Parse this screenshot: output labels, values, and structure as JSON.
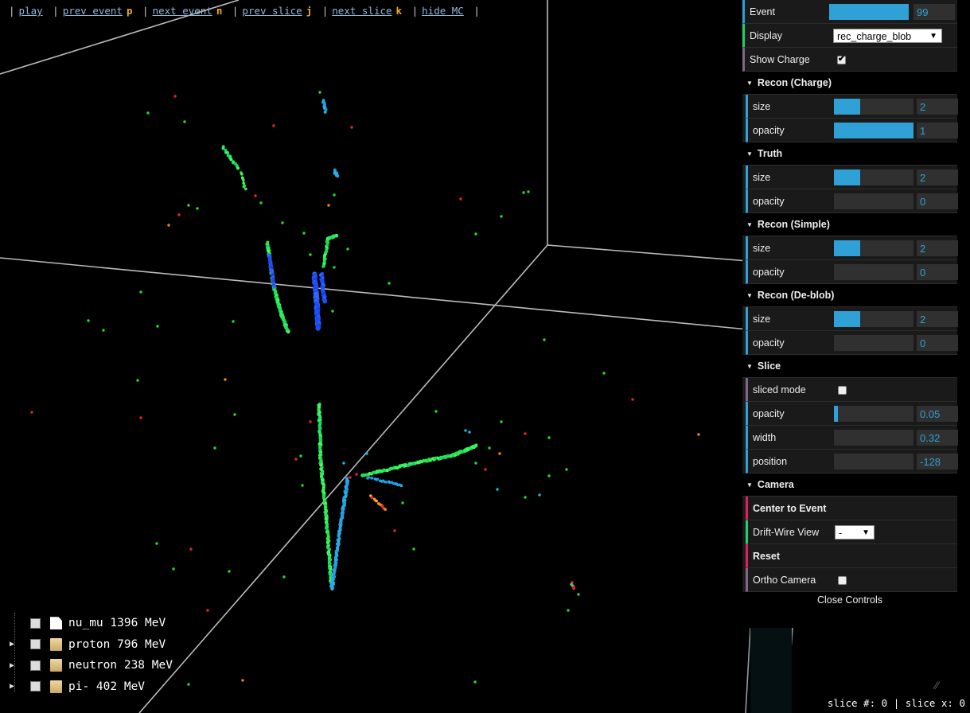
{
  "topnav": {
    "play": "play",
    "prev_event": "prev event",
    "prev_event_key": "p",
    "next_event": "next event",
    "next_event_key": "n",
    "prev_slice": "prev slice",
    "prev_slice_key": "j",
    "next_slice": "next slice",
    "next_slice_key": "k",
    "hide_mc": "hide MC"
  },
  "controls": {
    "event": {
      "label": "Event",
      "value": "99",
      "fraction": 1.0
    },
    "display": {
      "label": "Display",
      "value": "rec_charge_blob"
    },
    "show_charge": {
      "label": "Show Charge",
      "checked": true
    },
    "recon_charge": {
      "title": "Recon (Charge)",
      "size": {
        "label": "size",
        "value": "2",
        "fraction": 0.33
      },
      "opacity": {
        "label": "opacity",
        "value": "1",
        "fraction": 1.0
      }
    },
    "truth": {
      "title": "Truth",
      "size": {
        "label": "size",
        "value": "2",
        "fraction": 0.33
      },
      "opacity": {
        "label": "opacity",
        "value": "0",
        "fraction": 0.0
      }
    },
    "recon_simple": {
      "title": "Recon (Simple)",
      "size": {
        "label": "size",
        "value": "2",
        "fraction": 0.33
      },
      "opacity": {
        "label": "opacity",
        "value": "0",
        "fraction": 0.0
      }
    },
    "recon_deblob": {
      "title": "Recon (De-blob)",
      "size": {
        "label": "size",
        "value": "2",
        "fraction": 0.33
      },
      "opacity": {
        "label": "opacity",
        "value": "0",
        "fraction": 0.0
      }
    },
    "slice": {
      "title": "Slice",
      "sliced_mode": {
        "label": "sliced mode",
        "checked": false
      },
      "opacity": {
        "label": "opacity",
        "value": "0.05",
        "fraction": 0.05
      },
      "width": {
        "label": "width",
        "value": "0.32",
        "fraction": 0.0
      },
      "position": {
        "label": "position",
        "value": "-128",
        "fraction": 0.0
      }
    },
    "camera": {
      "title": "Camera",
      "center": "Center to Event",
      "drift_wire": {
        "label": "Drift-Wire View",
        "value": "-"
      },
      "reset": "Reset",
      "ortho": {
        "label": "Ortho Camera",
        "checked": false
      }
    },
    "close": "Close Controls"
  },
  "tree": [
    {
      "label": "nu_mu 1396 MeV",
      "icon": "file-icon",
      "expandable": false
    },
    {
      "label": "proton 796 MeV",
      "icon": "folder-icon",
      "expandable": true
    },
    {
      "label": "neutron 238 MeV",
      "icon": "folder-icon",
      "expandable": true
    },
    {
      "label": "pi- 402 MeV",
      "icon": "folder-icon",
      "expandable": true
    }
  ],
  "status": "slice #: 0 | slice x: 0"
}
